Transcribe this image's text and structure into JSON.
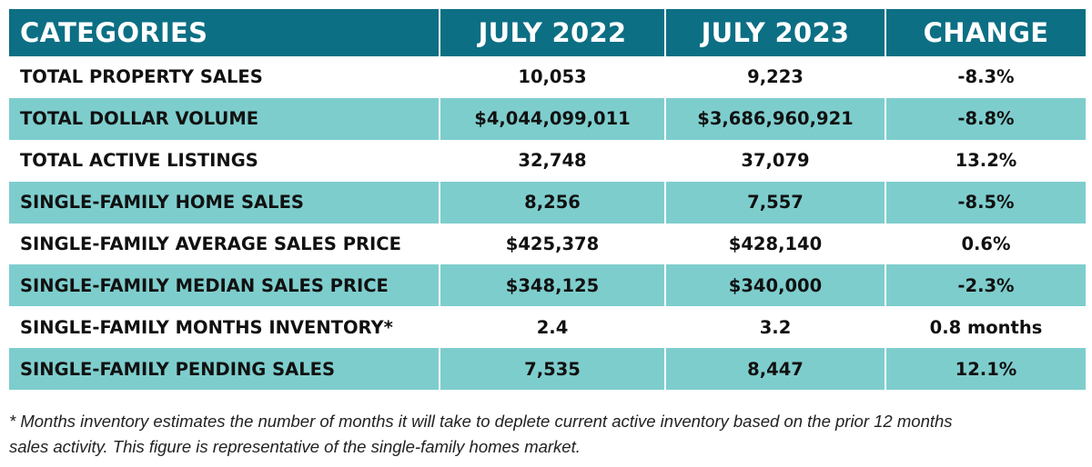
{
  "table": {
    "headers": [
      "CATEGORIES",
      "JULY 2022",
      "JULY 2023",
      "CHANGE"
    ],
    "rows": [
      {
        "category": "TOTAL PROPERTY SALES",
        "july_2022": "10,053",
        "july_2023": "9,223",
        "change": "-8.3%"
      },
      {
        "category": "TOTAL DOLLAR VOLUME",
        "july_2022": "$4,044,099,011",
        "july_2023": "$3,686,960,921",
        "change": "-8.8%"
      },
      {
        "category": "TOTAL ACTIVE LISTINGS",
        "july_2022": "32,748",
        "july_2023": "37,079",
        "change": "13.2%"
      },
      {
        "category": "SINGLE-FAMILY HOME SALES",
        "july_2022": "8,256",
        "july_2023": "7,557",
        "change": "-8.5%"
      },
      {
        "category": "SINGLE-FAMILY AVERAGE SALES PRICE",
        "july_2022": "$425,378",
        "july_2023": "$428,140",
        "change": "0.6%"
      },
      {
        "category": "SINGLE-FAMILY MEDIAN SALES PRICE",
        "july_2022": "$348,125",
        "july_2023": "$340,000",
        "change": "-2.3%"
      },
      {
        "category": "SINGLE-FAMILY MONTHS INVENTORY*",
        "july_2022": "2.4",
        "july_2023": "3.2",
        "change": "0.8 months"
      },
      {
        "category": "SINGLE-FAMILY PENDING SALES",
        "july_2022": "7,535",
        "july_2023": "8,447",
        "change": "12.1%"
      }
    ]
  },
  "footnote": {
    "line1": "* Months inventory estimates the number of months it will take to deplete current active inventory based on the prior 12 months",
    "line2": "sales activity. This figure is representative of the single-family homes market."
  },
  "colors": {
    "header_bg": "#0c6f84",
    "shaded_row_bg": "#7ecdcd",
    "plain_row_bg": "#ffffff"
  }
}
